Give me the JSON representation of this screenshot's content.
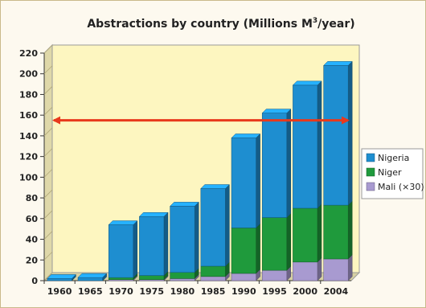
{
  "chart_data": {
    "type": "bar",
    "stacked": true,
    "title_main": "Abstractions by country (Millions M",
    "title_sup": "3",
    "title_end": "/year)",
    "categories": [
      "1960",
      "1965",
      "1970",
      "1975",
      "1980",
      "1985",
      "1990",
      "1995",
      "2000",
      "2004"
    ],
    "series": [
      {
        "name": "Mali (×30)",
        "color": "#a89ad0",
        "values": [
          0,
          0,
          1,
          1,
          2,
          4,
          7,
          10,
          18,
          21
        ]
      },
      {
        "name": "Niger",
        "color": "#1f9a3c",
        "values": [
          0,
          0,
          2,
          4,
          6,
          10,
          44,
          51,
          52,
          52
        ]
      },
      {
        "name": "Nigeria",
        "color": "#1e8ed0",
        "values": [
          2,
          3,
          51,
          57,
          64,
          75,
          87,
          101,
          119,
          135
        ]
      }
    ],
    "yticks": [
      0,
      20,
      40,
      60,
      80,
      100,
      120,
      140,
      160,
      180,
      200,
      220
    ],
    "ylim": [
      0,
      220
    ],
    "reference_line": {
      "y": 155,
      "color": "#e8391c",
      "arrows": "both"
    },
    "plot_background": "#fdf6c0",
    "grid": false,
    "legend_position": "right"
  }
}
